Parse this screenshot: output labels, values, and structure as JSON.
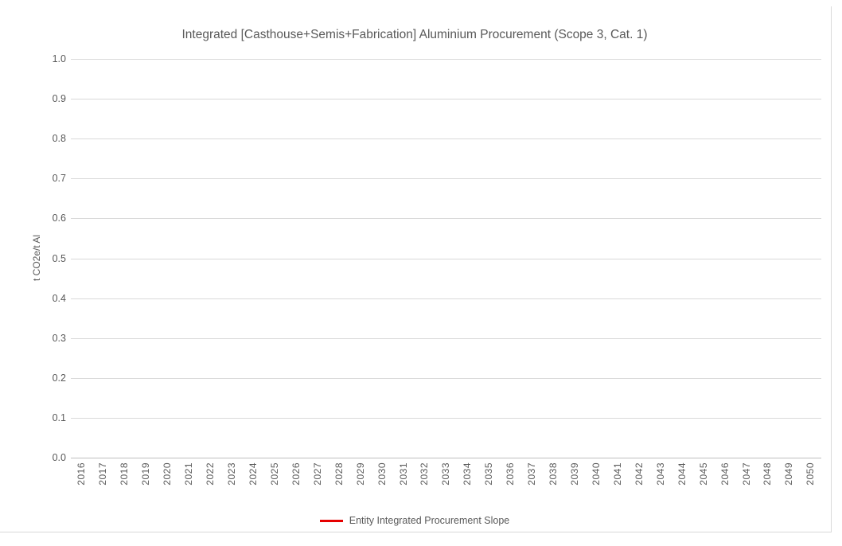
{
  "chart_data": {
    "type": "line",
    "title": "Integrated [Casthouse+Semis+Fabrication] Aluminium Procurement (Scope 3, Cat. 1)",
    "xlabel": "",
    "ylabel": "t CO2e/t Al",
    "ylim": [
      0.0,
      1.0
    ],
    "ytick_step": 0.1,
    "yticks": [
      "1.0",
      "0.9",
      "0.8",
      "0.7",
      "0.6",
      "0.5",
      "0.4",
      "0.3",
      "0.2",
      "0.1",
      "0.0"
    ],
    "categories": [
      "2016",
      "2017",
      "2018",
      "2019",
      "2020",
      "2021",
      "2022",
      "2023",
      "2024",
      "2025",
      "2026",
      "2027",
      "2028",
      "2029",
      "2030",
      "2031",
      "2032",
      "2033",
      "2034",
      "2035",
      "2036",
      "2037",
      "2038",
      "2039",
      "2040",
      "2041",
      "2042",
      "2043",
      "2044",
      "2045",
      "2046",
      "2047",
      "2048",
      "2049",
      "2050"
    ],
    "series": [
      {
        "name": "Entity Integrated Procurement Slope",
        "color": "#e60000",
        "values": []
      }
    ],
    "grid": "horizontal",
    "legend_position": "bottom"
  },
  "colors": {
    "background": "#ffffff",
    "text": "#595959",
    "gridline": "#d9d9d9",
    "axis_line": "#bfbfbf",
    "frame_border": "#d9d9d9"
  }
}
